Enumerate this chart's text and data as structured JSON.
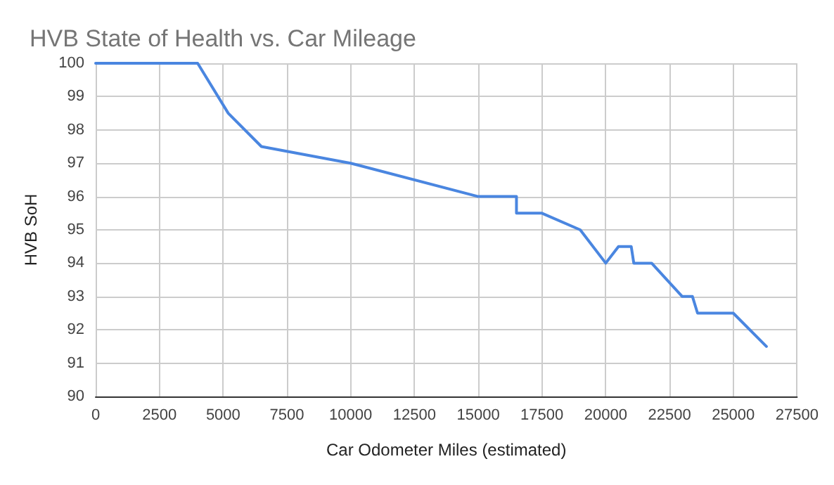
{
  "chart_data": {
    "type": "line",
    "title": "HVB State of Health vs. Car Mileage",
    "xlabel": "Car Odometer Miles (estimated)",
    "ylabel": "HVB SoH",
    "x": [
      0,
      4000,
      5200,
      6500,
      10000,
      15000,
      16500,
      16500,
      17500,
      19000,
      20000,
      20500,
      21000,
      21100,
      21800,
      23000,
      23400,
      23600,
      25000,
      26300
    ],
    "series": [
      {
        "color": "#4a86e0",
        "values": [
          100,
          100,
          98.5,
          97.5,
          97,
          96,
          96,
          95.5,
          95.5,
          95,
          94,
          94.5,
          94.5,
          94,
          94,
          93,
          93,
          92.5,
          92.5,
          91.5
        ]
      }
    ],
    "xlim": [
      0,
      27500
    ],
    "xticks": [
      0,
      2500,
      5000,
      7500,
      10000,
      12500,
      15000,
      17500,
      20000,
      22500,
      25000,
      27500
    ],
    "ylim": [
      90,
      100
    ],
    "yticks": [
      90,
      91,
      92,
      93,
      94,
      95,
      96,
      97,
      98,
      99,
      100
    ],
    "grid": true,
    "marker": "none",
    "line_style": "solid"
  }
}
